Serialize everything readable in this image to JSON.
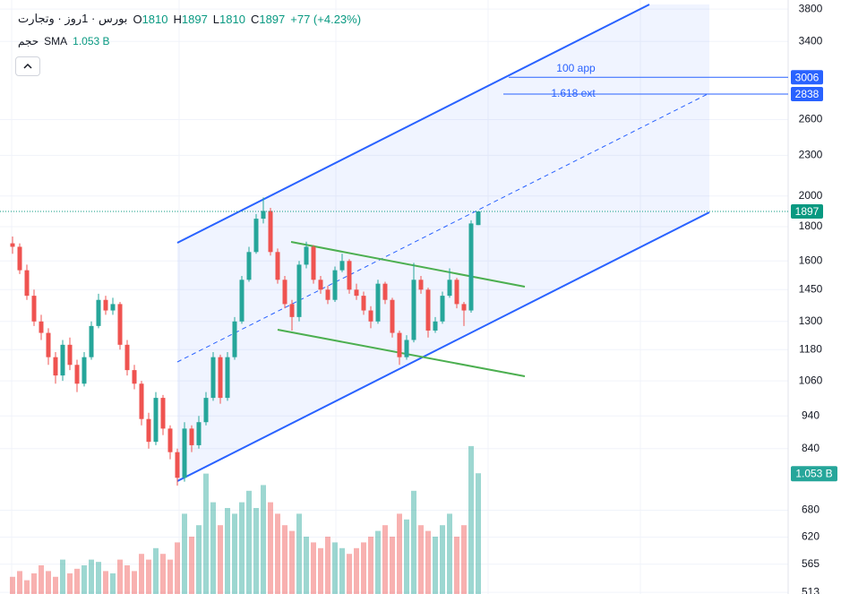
{
  "chart_data": {
    "type": "candlestick",
    "symbol": "بورس · 1روز · وتجارت",
    "ohlc_legend": [
      {
        "key": "O",
        "value": 1810
      },
      {
        "key": "H",
        "value": 1897
      },
      {
        "key": "L",
        "value": 1810
      },
      {
        "key": "C",
        "value": 1897
      }
    ],
    "change": "+77 (+4.23%)",
    "volume_legend": {
      "name": "حجم",
      "indicator": "SMA",
      "value_label": "1.053 B"
    },
    "log_scale": true,
    "ylim": [
      510,
      3920
    ],
    "yticks": [
      3800,
      3400,
      2600,
      2300,
      2000,
      1800,
      1600,
      1450,
      1300,
      1180,
      1060,
      940,
      840,
      680,
      620,
      565,
      513
    ],
    "up_color": "#26a69a",
    "down_color": "#ef5350",
    "open": [
      1700,
      1680,
      1550,
      1420,
      1300,
      1250,
      1150,
      1080,
      1200,
      1120,
      1050,
      1150,
      1280,
      1400,
      1350,
      1380,
      1200,
      1100,
      1050,
      930,
      860,
      1000,
      900,
      830,
      760,
      900,
      850,
      920,
      1000,
      1150,
      1000,
      1150,
      1300,
      1500,
      1650,
      1850,
      1900,
      1650,
      1500,
      1380,
      1320,
      1580,
      1680,
      1500,
      1450,
      1400,
      1550,
      1600,
      1450,
      1420,
      1350,
      1300,
      1480,
      1400,
      1250,
      1150,
      1220,
      1500,
      1450,
      1260,
      1300,
      1420,
      1500,
      1380,
      1350,
      1810
    ],
    "high": [
      1740,
      1700,
      1580,
      1450,
      1330,
      1270,
      1170,
      1220,
      1230,
      1140,
      1170,
      1300,
      1430,
      1420,
      1410,
      1390,
      1220,
      1120,
      1060,
      950,
      1020,
      1010,
      910,
      840,
      920,
      910,
      940,
      1020,
      1170,
      1160,
      1170,
      1320,
      1520,
      1680,
      1880,
      1990,
      1920,
      1670,
      1520,
      1400,
      1600,
      1710,
      1690,
      1520,
      1470,
      1570,
      1640,
      1610,
      1480,
      1440,
      1370,
      1500,
      1490,
      1410,
      1260,
      1240,
      1590,
      1520,
      1460,
      1320,
      1440,
      1560,
      1510,
      1390,
      1840,
      1897
    ],
    "low": [
      1640,
      1530,
      1400,
      1280,
      1220,
      1120,
      1050,
      1060,
      1100,
      1020,
      1040,
      1140,
      1270,
      1330,
      1330,
      1180,
      1080,
      1030,
      910,
      840,
      850,
      880,
      810,
      740,
      750,
      830,
      840,
      910,
      990,
      980,
      990,
      1140,
      1290,
      1490,
      1640,
      1820,
      1630,
      1480,
      1360,
      1260,
      1300,
      1560,
      1480,
      1430,
      1380,
      1390,
      1540,
      1430,
      1400,
      1330,
      1270,
      1290,
      1380,
      1230,
      1120,
      1140,
      1210,
      1430,
      1230,
      1250,
      1290,
      1410,
      1360,
      1280,
      1340,
      1810
    ],
    "close": [
      1680,
      1550,
      1420,
      1300,
      1250,
      1150,
      1080,
      1200,
      1120,
      1050,
      1150,
      1280,
      1400,
      1350,
      1380,
      1200,
      1100,
      1050,
      930,
      860,
      1000,
      900,
      830,
      760,
      900,
      850,
      920,
      1000,
      1150,
      1000,
      1150,
      1300,
      1500,
      1650,
      1850,
      1900,
      1650,
      1500,
      1380,
      1320,
      1580,
      1680,
      1500,
      1450,
      1400,
      1550,
      1600,
      1450,
      1420,
      1350,
      1300,
      1480,
      1400,
      1250,
      1150,
      1220,
      1500,
      1450,
      1260,
      1300,
      1420,
      1500,
      1380,
      1350,
      1820,
      1897
    ],
    "volume": [
      0.15,
      0.2,
      0.12,
      0.18,
      0.25,
      0.2,
      0.15,
      0.3,
      0.18,
      0.22,
      0.25,
      0.3,
      0.28,
      0.2,
      0.18,
      0.3,
      0.25,
      0.2,
      0.35,
      0.3,
      0.4,
      0.35,
      0.3,
      0.45,
      0.7,
      0.5,
      0.6,
      1.05,
      0.8,
      0.6,
      0.75,
      0.7,
      0.8,
      0.9,
      0.75,
      0.95,
      0.8,
      0.7,
      0.6,
      0.55,
      0.7,
      0.5,
      0.45,
      0.4,
      0.5,
      0.45,
      0.4,
      0.35,
      0.4,
      0.45,
      0.5,
      0.55,
      0.6,
      0.5,
      0.7,
      0.65,
      0.9,
      0.6,
      0.55,
      0.5,
      0.6,
      0.7,
      0.5,
      0.6,
      1.29,
      1.053
    ],
    "volume_lim": [
      0,
      5.18
    ],
    "price_badges": [
      {
        "value": 3006,
        "color": "#2962ff"
      },
      {
        "value": 2838,
        "color": "#2962ff"
      },
      {
        "value": 1897,
        "color": "#089981"
      }
    ],
    "annotations": [
      "100 app",
      "1.618 ext"
    ]
  }
}
